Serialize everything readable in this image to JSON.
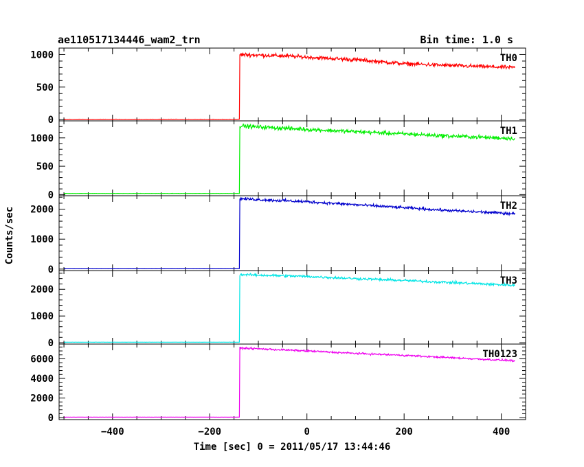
{
  "header": {
    "left_title": "ae110517134446_wam2_trn",
    "right_title": "Bin time: 1.0 s"
  },
  "chart_data": {
    "type": "line",
    "title": "ae110517134446_wam2_trn",
    "subtitle": "Bin time: 1.0 s",
    "xlabel": "Time [sec] 0 = 2011/05/17 13:44:46",
    "ylabel": "Counts/sec",
    "xlim": [
      -510,
      450
    ],
    "x_ticks": [
      -400,
      -200,
      0,
      200,
      400
    ],
    "x_tick_labels": [
      "−400",
      "−200",
      "0",
      "200",
      "400"
    ],
    "x_range_data": [
      -500,
      428
    ],
    "onset_time": -138,
    "grid": false,
    "legend": "none",
    "panels": [
      {
        "name": "TH0",
        "color": "#ff0000",
        "ylim": [
          -20,
          1100
        ],
        "yticks": [
          0,
          500,
          1000
        ],
        "ytick_labels": [
          "0",
          "500",
          "1000"
        ],
        "pre_level": 5,
        "onset_peak": 1010,
        "trend": [
          [
            -138,
            1000
          ],
          [
            -50,
            980
          ],
          [
            0,
            960
          ],
          [
            100,
            920
          ],
          [
            200,
            860
          ],
          [
            300,
            830
          ],
          [
            428,
            800
          ]
        ],
        "noise": 25
      },
      {
        "name": "TH1",
        "color": "#00ee00",
        "ylim": [
          -20,
          1300
        ],
        "yticks": [
          0,
          500,
          1000
        ],
        "ytick_labels": [
          "0",
          "500",
          "1000"
        ],
        "pre_level": 20,
        "onset_peak": 1250,
        "trend": [
          [
            -138,
            1210
          ],
          [
            0,
            1150
          ],
          [
            100,
            1110
          ],
          [
            200,
            1070
          ],
          [
            300,
            1030
          ],
          [
            428,
            990
          ]
        ],
        "noise": 30
      },
      {
        "name": "TH2",
        "color": "#0000cc",
        "ylim": [
          -50,
          2450
        ],
        "yticks": [
          0,
          1000,
          2000
        ],
        "ytick_labels": [
          "0",
          "1000",
          "2000"
        ],
        "pre_level": 20,
        "onset_peak": 2400,
        "trend": [
          [
            -138,
            2350
          ],
          [
            0,
            2250
          ],
          [
            100,
            2150
          ],
          [
            200,
            2050
          ],
          [
            300,
            1950
          ],
          [
            428,
            1850
          ]
        ],
        "noise": 40
      },
      {
        "name": "TH3",
        "color": "#00e5e5",
        "ylim": [
          -50,
          2700
        ],
        "yticks": [
          0,
          1000,
          2000
        ],
        "ytick_labels": [
          "0",
          "1000",
          "2000"
        ],
        "pre_level": 20,
        "onset_peak": 2600,
        "trend": [
          [
            -138,
            2550
          ],
          [
            0,
            2480
          ],
          [
            100,
            2400
          ],
          [
            200,
            2330
          ],
          [
            300,
            2250
          ],
          [
            428,
            2150
          ]
        ],
        "noise": 40
      },
      {
        "name": "TH0123",
        "color": "#ee00ee",
        "ylim": [
          -200,
          7500
        ],
        "yticks": [
          0,
          2000,
          4000,
          6000
        ],
        "ytick_labels": [
          "0",
          "2000",
          "4000",
          "6000"
        ],
        "pre_level": 50,
        "onset_peak": 7200,
        "trend": [
          [
            -138,
            7100
          ],
          [
            0,
            6800
          ],
          [
            100,
            6550
          ],
          [
            200,
            6350
          ],
          [
            300,
            6100
          ],
          [
            428,
            5800
          ]
        ],
        "noise": 80
      }
    ]
  }
}
